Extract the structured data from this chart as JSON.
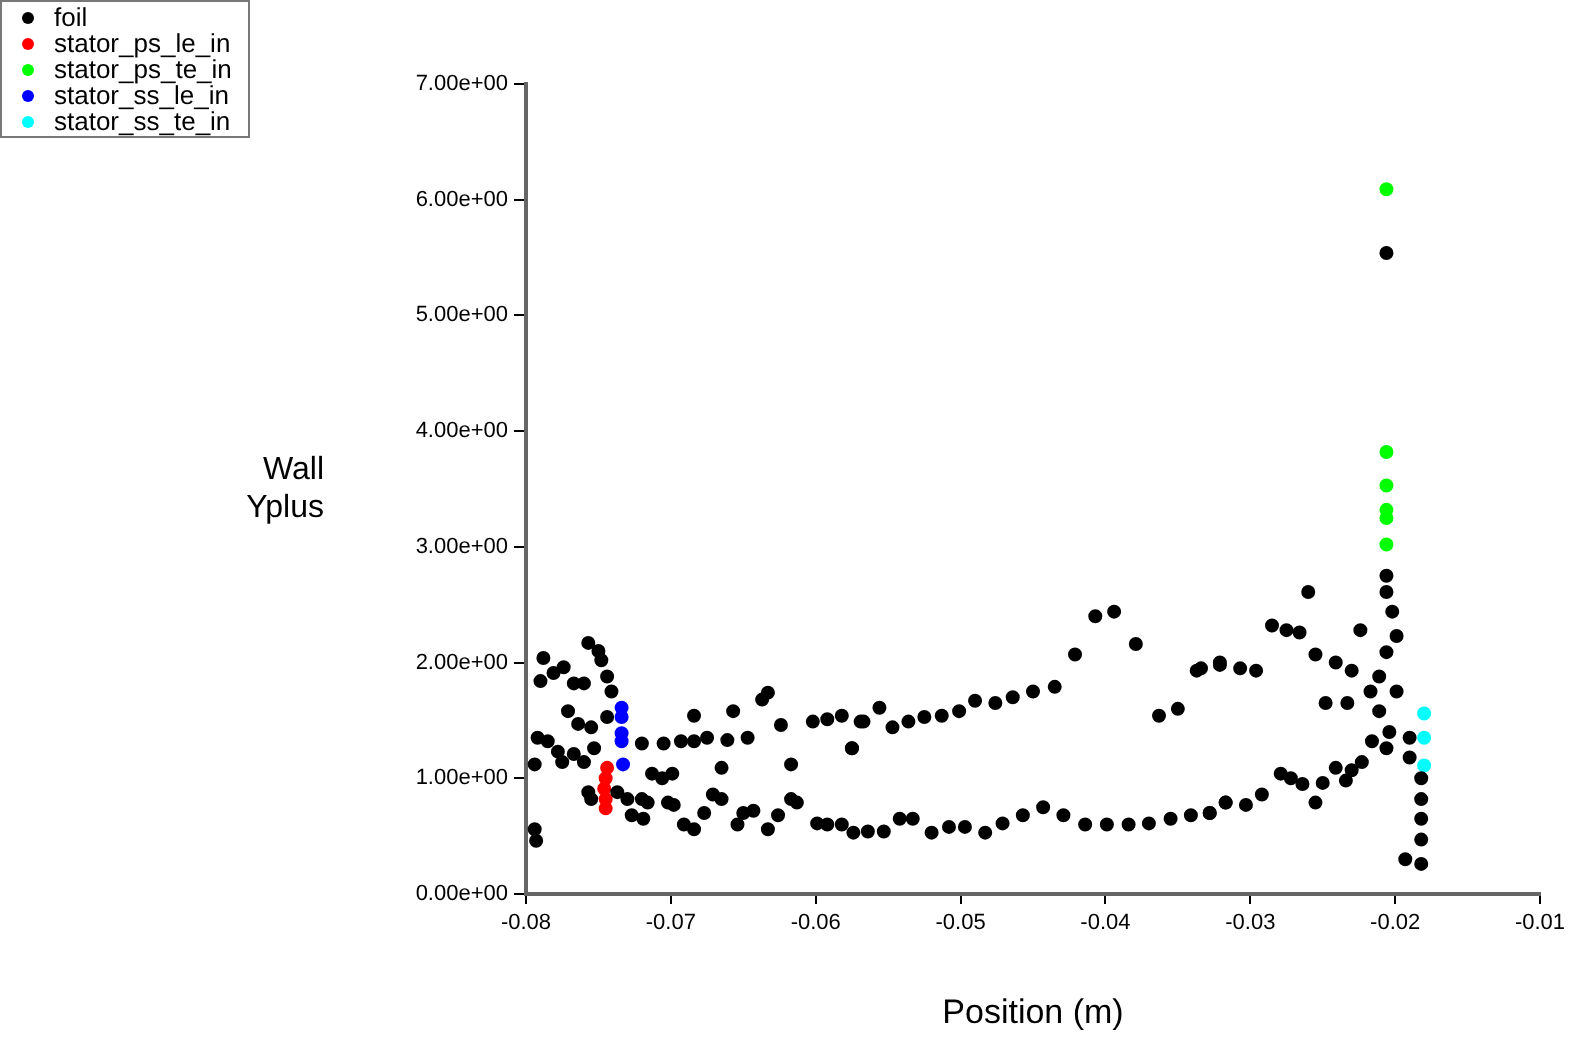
{
  "chart_data": {
    "type": "scatter",
    "xlabel": "Position (m)",
    "ylabel": "Wall Yplus",
    "xlim": [
      -0.08,
      -0.01
    ],
    "xticks": [
      -0.08,
      -0.07,
      -0.06,
      -0.05,
      -0.04,
      -0.03,
      -0.02,
      -0.01
    ],
    "ylim": [
      0,
      7
    ],
    "yticks": [
      {
        "value": 0,
        "label": "0.00e+00"
      },
      {
        "value": 1,
        "label": "1.00e+00"
      },
      {
        "value": 2,
        "label": "2.00e+00"
      },
      {
        "value": 3,
        "label": "3.00e+00"
      },
      {
        "value": 4,
        "label": "4.00e+00"
      },
      {
        "value": 5,
        "label": "5.00e+00"
      },
      {
        "value": 6,
        "label": "6.00e+00"
      },
      {
        "value": 7,
        "label": "7.00e+00"
      }
    ],
    "grid": false,
    "legend": "top left",
    "marker": "circle",
    "series": [
      {
        "name": "foil",
        "color": "#000000",
        "x": [
          -0.0794,
          -0.0793,
          -0.0788,
          -0.079,
          -0.0792,
          -0.0794,
          -0.0781,
          -0.0774,
          -0.0767,
          -0.076,
          -0.0757,
          -0.075,
          -0.0748,
          -0.0744,
          -0.0741,
          -0.0771,
          -0.0764,
          -0.0755,
          -0.0785,
          -0.0778,
          -0.0775,
          -0.0767,
          -0.076,
          -0.0753,
          -0.0744,
          -0.0757,
          -0.0755,
          -0.0737,
          -0.073,
          -0.072,
          -0.0716,
          -0.0727,
          -0.0719,
          -0.0713,
          -0.0706,
          -0.0699,
          -0.0702,
          -0.0698,
          -0.0691,
          -0.0684,
          -0.0677,
          -0.0671,
          -0.0665,
          -0.0665,
          -0.0654,
          -0.065,
          -0.0643,
          -0.0633,
          -0.0626,
          -0.0617,
          -0.0613,
          -0.0599,
          -0.0592,
          -0.0582,
          -0.0574,
          -0.0617,
          -0.0575,
          -0.072,
          -0.0705,
          -0.0693,
          -0.0684,
          -0.0675,
          -0.0661,
          -0.0647,
          -0.0684,
          -0.0657,
          -0.0624,
          -0.0637,
          -0.0633,
          -0.0602,
          -0.0592,
          -0.0582,
          -0.0569,
          -0.0575,
          -0.0567,
          -0.0556,
          -0.0547,
          -0.0536,
          -0.0525,
          -0.0513,
          -0.0501,
          -0.049,
          -0.0476,
          -0.0464,
          -0.045,
          -0.0435,
          -0.0421,
          -0.0407,
          -0.0394,
          -0.0379,
          -0.0363,
          -0.035,
          -0.0334,
          -0.0321,
          -0.0564,
          -0.0553,
          -0.0542,
          -0.0533,
          -0.052,
          -0.0508,
          -0.0497,
          -0.0483,
          -0.0471,
          -0.0457,
          -0.0443,
          -0.0429,
          -0.0414,
          -0.0399,
          -0.0384,
          -0.037,
          -0.0355,
          -0.0341,
          -0.0328,
          -0.0317,
          -0.0206,
          -0.0206,
          -0.0206,
          -0.026,
          -0.0285,
          -0.0275,
          -0.0266,
          -0.0224,
          -0.0202,
          -0.0199,
          -0.0206,
          -0.0255,
          -0.0241,
          -0.023,
          -0.0211,
          -0.0199,
          -0.0217,
          -0.0248,
          -0.0233,
          -0.0211,
          -0.0204,
          -0.0216,
          -0.019,
          -0.0206,
          -0.019,
          -0.0223,
          -0.023,
          -0.0241,
          -0.025,
          -0.0264,
          -0.0272,
          -0.0279,
          -0.0292,
          -0.0255,
          -0.0234,
          -0.0182,
          -0.0182,
          -0.0182,
          -0.0182,
          -0.0182,
          -0.0193,
          -0.0303,
          -0.0317,
          -0.0328,
          -0.0337,
          -0.0321,
          -0.0307,
          -0.0296
        ],
        "values": [
          0.56,
          0.46,
          2.04,
          1.84,
          1.35,
          1.12,
          1.91,
          1.96,
          1.82,
          1.82,
          2.17,
          2.1,
          2.02,
          1.88,
          1.75,
          1.58,
          1.47,
          1.44,
          1.32,
          1.23,
          1.14,
          1.21,
          1.14,
          1.26,
          1.53,
          0.88,
          0.82,
          0.88,
          0.82,
          0.82,
          0.79,
          0.68,
          0.65,
          1.04,
          1.0,
          1.04,
          0.79,
          0.77,
          0.6,
          0.56,
          0.7,
          0.86,
          0.82,
          1.09,
          0.6,
          0.7,
          0.72,
          0.56,
          0.68,
          0.82,
          0.79,
          0.61,
          0.6,
          0.6,
          0.53,
          1.12,
          1.26,
          1.3,
          1.3,
          1.32,
          1.32,
          1.35,
          1.33,
          1.35,
          1.54,
          1.58,
          1.46,
          1.68,
          1.74,
          1.49,
          1.51,
          1.54,
          1.49,
          1.26,
          1.49,
          1.61,
          1.44,
          1.49,
          1.53,
          1.54,
          1.58,
          1.67,
          1.65,
          1.7,
          1.75,
          1.79,
          2.07,
          2.4,
          2.44,
          2.16,
          1.54,
          1.6,
          1.95,
          2.0,
          0.54,
          0.54,
          0.65,
          0.65,
          0.53,
          0.58,
          0.58,
          0.53,
          0.61,
          0.68,
          0.75,
          0.68,
          0.6,
          0.6,
          0.6,
          0.61,
          0.65,
          0.68,
          0.7,
          0.79,
          5.54,
          2.75,
          2.61,
          2.61,
          2.32,
          2.28,
          2.26,
          2.28,
          2.44,
          2.23,
          2.09,
          2.07,
          2.0,
          1.93,
          1.88,
          1.75,
          1.75,
          1.65,
          1.65,
          1.58,
          1.4,
          1.32,
          1.35,
          1.26,
          1.18,
          1.14,
          1.07,
          1.09,
          0.96,
          0.95,
          1.0,
          1.04,
          0.86,
          0.79,
          0.98,
          1.0,
          0.82,
          0.65,
          0.47,
          0.26,
          0.3,
          0.77,
          0.79,
          0.7,
          1.93,
          1.98,
          1.95,
          1.93
        ]
      },
      {
        "name": "stator_ps_le_in",
        "color": "#ff0000",
        "x": [
          -0.0744,
          -0.0745,
          -0.0746,
          -0.0745,
          -0.0745
        ],
        "values": [
          1.09,
          1.0,
          0.91,
          0.82,
          0.74
        ]
      },
      {
        "name": "stator_ps_te_in",
        "color": "#00ff00",
        "x": [
          -0.0206,
          -0.0206,
          -0.0206,
          -0.0206,
          -0.0206,
          -0.0206
        ],
        "values": [
          6.09,
          3.82,
          3.53,
          3.32,
          3.25,
          3.02
        ]
      },
      {
        "name": "stator_ss_le_in",
        "color": "#0000ff",
        "x": [
          -0.0734,
          -0.0734,
          -0.0734,
          -0.0734,
          -0.0733
        ],
        "values": [
          1.61,
          1.53,
          1.39,
          1.32,
          1.12
        ]
      },
      {
        "name": "stator_ss_te_in",
        "color": "#00ffff",
        "x": [
          -0.018,
          -0.018,
          -0.018
        ],
        "values": [
          1.56,
          1.35,
          1.11
        ]
      }
    ]
  }
}
